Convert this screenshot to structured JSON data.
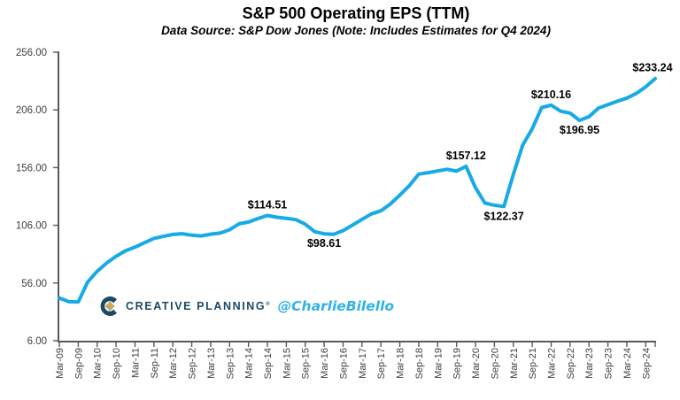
{
  "chart_data": {
    "type": "line",
    "title": "S&P 500 Operating EPS (TTM)",
    "subtitle": "Data Source: S&P Dow Jones (Note: Includes Estimates for Q4 2024)",
    "line_color": "#17AAE5",
    "axis_color": "#595959",
    "tick_label_color": "#3F3F3F",
    "grid": "off",
    "legend": "none",
    "ylim": [
      6,
      256
    ],
    "y_ticks": [
      {
        "value": 6,
        "label": "6.00"
      },
      {
        "value": 56,
        "label": "56.00"
      },
      {
        "value": 106,
        "label": "106.00"
      },
      {
        "value": 156,
        "label": "156.00"
      },
      {
        "value": 206,
        "label": "206.00"
      },
      {
        "value": 256,
        "label": "256.00"
      }
    ],
    "x_label_every": 2,
    "x": [
      "Mar-09",
      "Jun-09",
      "Sep-09",
      "Dec-09",
      "Mar-10",
      "Jun-10",
      "Sep-10",
      "Dec-10",
      "Mar-11",
      "Jun-11",
      "Sep-11",
      "Dec-11",
      "Mar-12",
      "Jun-12",
      "Sep-12",
      "Dec-12",
      "Mar-13",
      "Jun-13",
      "Sep-13",
      "Dec-13",
      "Mar-14",
      "Jun-14",
      "Sep-14",
      "Dec-14",
      "Mar-15",
      "Jun-15",
      "Sep-15",
      "Dec-15",
      "Mar-16",
      "Jun-16",
      "Sep-16",
      "Dec-16",
      "Mar-17",
      "Jun-17",
      "Sep-17",
      "Dec-17",
      "Mar-18",
      "Jun-18",
      "Sep-18",
      "Dec-18",
      "Mar-19",
      "Jun-19",
      "Sep-19",
      "Dec-19",
      "Mar-20",
      "Jun-20",
      "Sep-20",
      "Dec-20",
      "Mar-21",
      "Jun-21",
      "Sep-21",
      "Dec-21",
      "Mar-22",
      "Jun-22",
      "Sep-22",
      "Dec-22",
      "Mar-23",
      "Jun-23",
      "Sep-23",
      "Dec-23",
      "Mar-24",
      "Jun-24",
      "Sep-24",
      "Dec-24"
    ],
    "values": [
      43.0,
      39.79,
      39.61,
      56.86,
      66.13,
      73.36,
      79.14,
      83.91,
      87.09,
      90.91,
      94.64,
      96.44,
      98.12,
      98.69,
      97.4,
      96.82,
      98.35,
      99.28,
      102.2,
      107.3,
      108.85,
      111.83,
      114.51,
      113.01,
      112.07,
      110.89,
      106.99,
      100.45,
      98.61,
      98.17,
      101.42,
      106.26,
      111.11,
      115.92,
      118.56,
      124.51,
      132.23,
      140.37,
      150.42,
      151.6,
      153.05,
      154.54,
      152.97,
      157.12,
      138.63,
      125.28,
      123.37,
      122.37,
      150.28,
      175.52,
      189.64,
      208.09,
      210.16,
      204.88,
      203.21,
      196.95,
      200.13,
      207.62,
      210.63,
      213.53,
      216.29,
      220.26,
      226.0,
      233.24
    ],
    "annotations": [
      {
        "text": "$114.51",
        "index": 22,
        "position": "above"
      },
      {
        "text": "$98.61",
        "index": 28,
        "position": "below"
      },
      {
        "text": "$157.12",
        "index": 43,
        "position": "above"
      },
      {
        "text": "$122.37",
        "index": 47,
        "position": "below"
      },
      {
        "text": "$210.16",
        "index": 52,
        "position": "above"
      },
      {
        "text": "$196.95",
        "index": 55,
        "position": "below"
      },
      {
        "text": "$233.24",
        "index": 63,
        "position": "above"
      }
    ]
  },
  "watermark": {
    "brand": "CREATIVE PLANNING",
    "reg": "®",
    "handle": "@CharlieBilello",
    "brand_color": "#1B4A63",
    "gold_color": "#C9A566",
    "handle_color": "#2FB2E5"
  }
}
